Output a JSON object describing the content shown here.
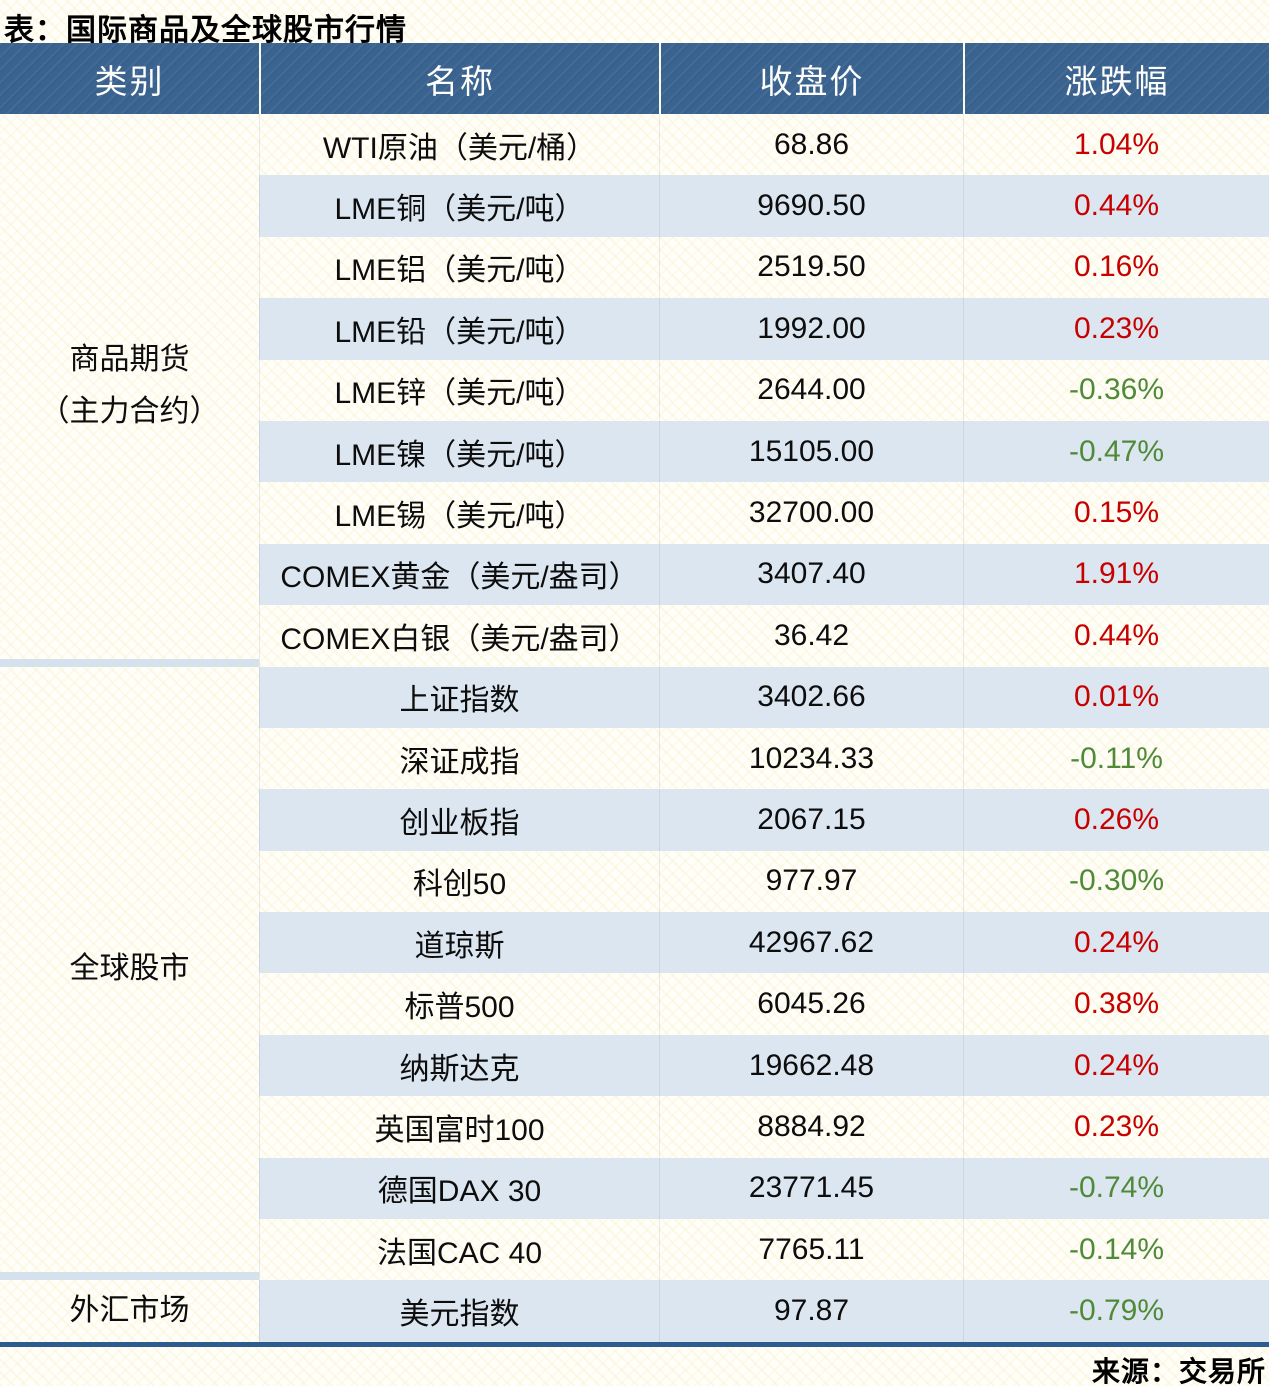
{
  "title": "表：国际商品及全球股市行情",
  "source": "来源：交易所",
  "colors": {
    "header_bg": "#3a6390",
    "row_alt_bg": "#dce6f1",
    "up_red": "#c70000",
    "down_green": "#4f8a38",
    "bottom_border": "#2e5c8e",
    "category_divider": "#d6e1ee"
  },
  "table": {
    "headers": [
      "类别",
      "名称",
      "收盘价",
      "涨跌幅"
    ],
    "categories": [
      {
        "label": "商品期货",
        "label2": "（主力合约）",
        "span": 9
      },
      {
        "label": "全球股市",
        "label2": "",
        "span": 10
      },
      {
        "label": "外汇市场",
        "label2": "",
        "span": 1
      }
    ],
    "rows": [
      {
        "name": "WTI原油（美元/桶）",
        "close": "68.86",
        "change": "1.04%",
        "dir": "up"
      },
      {
        "name": "LME铜（美元/吨）",
        "close": "9690.50",
        "change": "0.44%",
        "dir": "up"
      },
      {
        "name": "LME铝（美元/吨）",
        "close": "2519.50",
        "change": "0.16%",
        "dir": "up"
      },
      {
        "name": "LME铅（美元/吨）",
        "close": "1992.00",
        "change": "0.23%",
        "dir": "up"
      },
      {
        "name": "LME锌（美元/吨）",
        "close": "2644.00",
        "change": "-0.36%",
        "dir": "down"
      },
      {
        "name": "LME镍（美元/吨）",
        "close": "15105.00",
        "change": "-0.47%",
        "dir": "down"
      },
      {
        "name": "LME锡（美元/吨）",
        "close": "32700.00",
        "change": "0.15%",
        "dir": "up"
      },
      {
        "name": "COMEX黄金（美元/盎司）",
        "close": "3407.40",
        "change": "1.91%",
        "dir": "up"
      },
      {
        "name": "COMEX白银（美元/盎司）",
        "close": "36.42",
        "change": "0.44%",
        "dir": "up"
      },
      {
        "name": "上证指数",
        "close": "3402.66",
        "change": "0.01%",
        "dir": "up"
      },
      {
        "name": "深证成指",
        "close": "10234.33",
        "change": "-0.11%",
        "dir": "down"
      },
      {
        "name": "创业板指",
        "close": "2067.15",
        "change": "0.26%",
        "dir": "up"
      },
      {
        "name": "科创50",
        "close": "977.97",
        "change": "-0.30%",
        "dir": "down"
      },
      {
        "name": "道琼斯",
        "close": "42967.62",
        "change": "0.24%",
        "dir": "up"
      },
      {
        "name": "标普500",
        "close": "6045.26",
        "change": "0.38%",
        "dir": "up"
      },
      {
        "name": "纳斯达克",
        "close": "19662.48",
        "change": "0.24%",
        "dir": "up"
      },
      {
        "name": "英国富时100",
        "close": "8884.92",
        "change": "0.23%",
        "dir": "up"
      },
      {
        "name": "德国DAX 30",
        "close": "23771.45",
        "change": "-0.74%",
        "dir": "down"
      },
      {
        "name": "法国CAC 40",
        "close": "7765.11",
        "change": "-0.14%",
        "dir": "down"
      },
      {
        "name": "美元指数",
        "close": "97.87",
        "change": "-0.79%",
        "dir": "down"
      }
    ]
  },
  "chart_data": {
    "type": "table",
    "title": "表：国际商品及全球股市行情",
    "columns": [
      "类别",
      "名称",
      "收盘价",
      "涨跌幅"
    ],
    "rows": [
      [
        "商品期货（主力合约）",
        "WTI原油（美元/桶）",
        68.86,
        "1.04%"
      ],
      [
        "商品期货（主力合约）",
        "LME铜（美元/吨）",
        9690.5,
        "0.44%"
      ],
      [
        "商品期货（主力合约）",
        "LME铝（美元/吨）",
        2519.5,
        "0.16%"
      ],
      [
        "商品期货（主力合约）",
        "LME铅（美元/吨）",
        1992.0,
        "0.23%"
      ],
      [
        "商品期货（主力合约）",
        "LME锌（美元/吨）",
        2644.0,
        "-0.36%"
      ],
      [
        "商品期货（主力合约）",
        "LME镍（美元/吨）",
        15105.0,
        "-0.47%"
      ],
      [
        "商品期货（主力合约）",
        "LME锡（美元/吨）",
        32700.0,
        "0.15%"
      ],
      [
        "商品期货（主力合约）",
        "COMEX黄金（美元/盎司）",
        3407.4,
        "1.91%"
      ],
      [
        "商品期货（主力合约）",
        "COMEX白银（美元/盎司）",
        36.42,
        "0.44%"
      ],
      [
        "全球股市",
        "上证指数",
        3402.66,
        "0.01%"
      ],
      [
        "全球股市",
        "深证成指",
        10234.33,
        "-0.11%"
      ],
      [
        "全球股市",
        "创业板指",
        2067.15,
        "0.26%"
      ],
      [
        "全球股市",
        "科创50",
        977.97,
        "-0.30%"
      ],
      [
        "全球股市",
        "道琼斯",
        42967.62,
        "0.24%"
      ],
      [
        "全球股市",
        "标普500",
        6045.26,
        "0.38%"
      ],
      [
        "全球股市",
        "纳斯达克",
        19662.48,
        "0.24%"
      ],
      [
        "全球股市",
        "英国富时100",
        8884.92,
        "0.23%"
      ],
      [
        "全球股市",
        "德国DAX 30",
        23771.45,
        "-0.74%"
      ],
      [
        "全球股市",
        "法国CAC 40",
        7765.11,
        "-0.14%"
      ],
      [
        "外汇市场",
        "美元指数",
        97.87,
        "-0.79%"
      ]
    ],
    "notes": "涨跌幅 positive values shown in red, negative in green; source note 来源：交易所"
  }
}
